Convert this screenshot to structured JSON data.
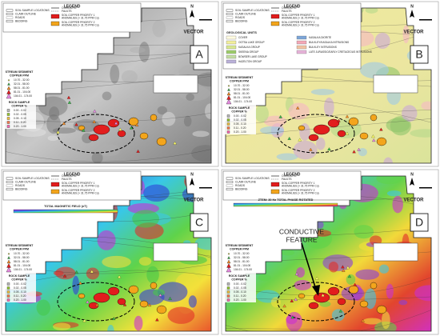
{
  "legend": {
    "title": "LEGEND",
    "items": [
      "SOIL SAMPLE LOCATIONS",
      "CLAIM OUTLINE",
      "ROADS",
      "BEDDING"
    ],
    "lines": [
      "CONTACTS",
      "FAULTS"
    ],
    "soil": [
      {
        "lines": [
          "SOIL COPPER PRIORITY 1",
          "ANOMALIES (> 31.75 PPM Cu)"
        ]
      },
      {
        "lines": [
          "SOIL COPPER PRIORITY 2",
          "ANOMALIES (> 31.75 PPM Cu)"
        ]
      }
    ]
  },
  "stream": {
    "title": [
      "STREAM SEDIMENT",
      "COPPER PPM"
    ],
    "ranges": [
      "10.70 - 32.00",
      "32.01 - 58.00",
      "58.01 - 81.00",
      "81.01 - 104.00",
      "104.01 - 174.00"
    ]
  },
  "rock": {
    "title": [
      "ROCK SAMPLE",
      "COPPER %"
    ],
    "ranges": [
      "0.00 - 0.02",
      "0.02 - 0.05",
      "0.05 - 0.10",
      "0.11 - 0.20",
      "0.20 - 1.00"
    ]
  },
  "logo": "VECTOR",
  "north": "N",
  "panels": [
    {
      "label": "A"
    },
    {
      "label": "B",
      "geology_title": "GEOLOGICAL UNITS",
      "units": [
        "COVER",
        "OOTSA LAKE GROUP",
        "KASALKA GROUP",
        "SKEENA GROUP",
        "BOWSER LAKE GROUP",
        "HAZELTON GROUP",
        "KASALKA DIORITE",
        "BULKLEY/KASALKA INTRUSIONS",
        "BULKLEY INTRUSIONS",
        "LATE JURASSIC/EARLY CRETACEOUS INTRUSIONS"
      ]
    },
    {
      "label": "C",
      "colorbar_title": "TOTAL MAGNETIC FIELD (nT)"
    },
    {
      "label": "D",
      "colorbar_title": "ZTEM: 30 Hz TOTAL PHASE ROTATED",
      "annotation": [
        "CONDUCTIVE",
        "FEATURE"
      ]
    }
  ]
}
